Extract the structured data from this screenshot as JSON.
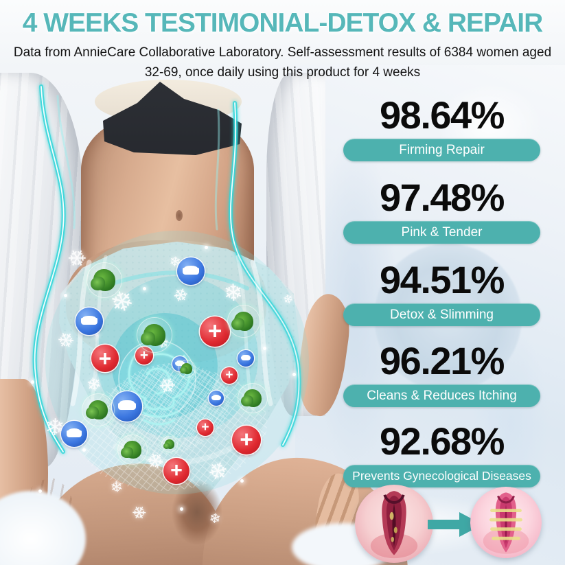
{
  "header": {
    "title": "4 WEEKS TESTIMONIAL-DETOX & REPAIR",
    "subtitle": "Data from AnnieCare Collaborative Laboratory. Self-assessment results of 6384 women aged 32-69, once daily using this product for 4 weeks"
  },
  "stats": [
    {
      "value": "98.64%",
      "label": "Firming Repair"
    },
    {
      "value": "97.48%",
      "label": "Pink & Tender"
    },
    {
      "value": "94.51%",
      "label": "Detox & Slimming"
    },
    {
      "value": "96.21%",
      "label": "Cleans & Reduces Itching"
    },
    {
      "value": "92.68%",
      "label": "Prevents Gynecological Diseases"
    }
  ],
  "overlay_icons": {
    "snowflake": "❄",
    "cross": "+",
    "pad": "pad-icon",
    "herb": "herb-ball-icon",
    "sparkle": "sparkle-dot-icon"
  },
  "before_after": {
    "before_name": "inflamed-tissue-illustration",
    "after_name": "healthy-tissue-illustration",
    "arrow_name": "right-arrow-icon"
  },
  "colors": {
    "title_teal": "#56b7b9",
    "pill_teal": "#4db1ae",
    "accent_teal": "#3fa8a5",
    "badge_red": "#e02a31",
    "badge_blue": "#3b76e0",
    "stat_text": "#0b0b0b"
  }
}
